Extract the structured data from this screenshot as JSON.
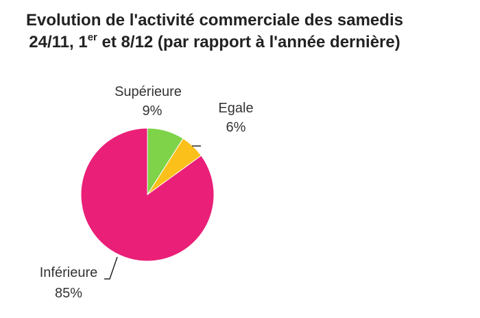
{
  "chart_data": {
    "type": "pie",
    "title_line1": "Evolution de l'activité commerciale des samedis",
    "title_line2_prefix": "24/11, 1",
    "title_line2_sup": "er",
    "title_line2_suffix": " et 8/12 (par rapport à l'année dernière)",
    "start_angle_deg": 0,
    "slices": [
      {
        "label": "Supérieure",
        "value": 9,
        "value_label": "9%",
        "color": "#7ed348"
      },
      {
        "label": "Egale",
        "value": 6,
        "value_label": "6%",
        "color": "#fbc01a"
      },
      {
        "label": "Inférieure",
        "value": 85,
        "value_label": "85%",
        "color": "#ea1f78"
      }
    ]
  }
}
